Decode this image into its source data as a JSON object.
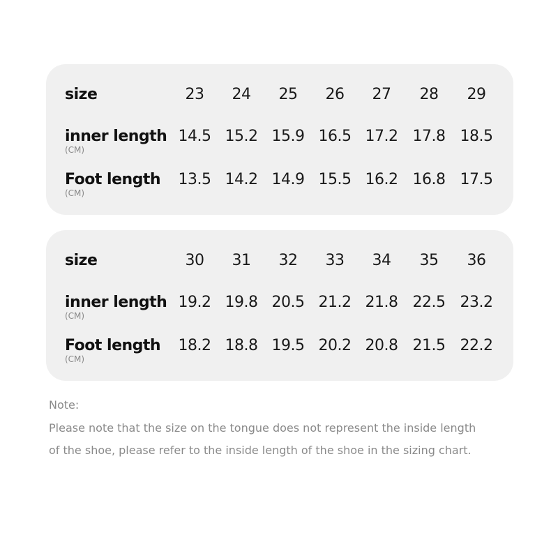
{
  "tables": [
    {
      "rows": [
        {
          "label": "size",
          "unit": "",
          "values": [
            "23",
            "24",
            "25",
            "26",
            "27",
            "28",
            "29"
          ]
        },
        {
          "label": "inner length",
          "unit": "(CM)",
          "values": [
            "14.5",
            "15.2",
            "15.9",
            "16.5",
            "17.2",
            "17.8",
            "18.5"
          ]
        },
        {
          "label": "Foot length",
          "unit": "(CM)",
          "values": [
            "13.5",
            "14.2",
            "14.9",
            "15.5",
            "16.2",
            "16.8",
            "17.5"
          ]
        }
      ]
    },
    {
      "rows": [
        {
          "label": "size",
          "unit": "",
          "values": [
            "30",
            "31",
            "32",
            "33",
            "34",
            "35",
            "36"
          ]
        },
        {
          "label": "inner length",
          "unit": "(CM)",
          "values": [
            "19.2",
            "19.8",
            "20.5",
            "21.2",
            "21.8",
            "22.5",
            "23.2"
          ]
        },
        {
          "label": "Foot length",
          "unit": "(CM)",
          "values": [
            "18.2",
            "18.8",
            "19.5",
            "20.2",
            "20.8",
            "21.5",
            "22.2"
          ]
        }
      ]
    }
  ],
  "note": {
    "title": "Note:",
    "line1": "Please note that the size on the tongue does not represent the inside length",
    "line2": "of the shoe, please refer to the inside length of the shoe in the sizing chart."
  }
}
